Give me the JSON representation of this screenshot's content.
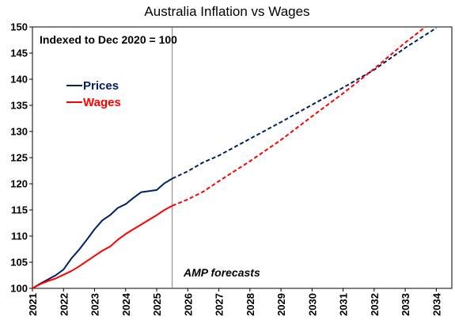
{
  "chart_data": {
    "type": "line",
    "title": "Australia Inflation vs Wages",
    "subtitle": "Indexed to Dec 2020 = 100",
    "annotation": "AMP forecasts",
    "forecast_start": 2025.5,
    "ylim": [
      100,
      150
    ],
    "xlim": [
      2021,
      2034.5
    ],
    "yticks": [
      100,
      105,
      110,
      115,
      120,
      125,
      130,
      135,
      140,
      145,
      150
    ],
    "xticks": [
      2021,
      2022,
      2023,
      2024,
      2025,
      2026,
      2027,
      2028,
      2029,
      2030,
      2031,
      2032,
      2033,
      2034
    ],
    "legend_position": "left",
    "series": [
      {
        "name": "Prices",
        "color": "#002060",
        "actual": [
          [
            2021.0,
            100.0
          ],
          [
            2021.25,
            100.9
          ],
          [
            2021.5,
            101.7
          ],
          [
            2021.75,
            102.5
          ],
          [
            2022.0,
            103.6
          ],
          [
            2022.25,
            105.7
          ],
          [
            2022.5,
            107.4
          ],
          [
            2022.75,
            109.3
          ],
          [
            2023.0,
            111.3
          ],
          [
            2023.25,
            113.0
          ],
          [
            2023.5,
            114.0
          ],
          [
            2023.75,
            115.4
          ],
          [
            2024.0,
            116.1
          ],
          [
            2024.25,
            117.3
          ],
          [
            2024.5,
            118.4
          ],
          [
            2024.75,
            118.6
          ],
          [
            2025.0,
            118.8
          ],
          [
            2025.25,
            120.1
          ],
          [
            2025.5,
            121.0
          ]
        ],
        "forecast": [
          [
            2025.5,
            121.0
          ],
          [
            2026.0,
            122.4
          ],
          [
            2026.5,
            124.1
          ],
          [
            2027.0,
            125.4
          ],
          [
            2028.0,
            128.6
          ],
          [
            2029.0,
            131.8
          ],
          [
            2030.0,
            135.1
          ],
          [
            2031.0,
            138.4
          ],
          [
            2032.0,
            141.8
          ],
          [
            2033.0,
            146.0
          ],
          [
            2034.0,
            149.8
          ]
        ]
      },
      {
        "name": "Wages",
        "color": "#ff0000",
        "actual": [
          [
            2021.0,
            100.0
          ],
          [
            2021.25,
            100.8
          ],
          [
            2021.5,
            101.4
          ],
          [
            2021.75,
            101.9
          ],
          [
            2022.0,
            102.6
          ],
          [
            2022.25,
            103.3
          ],
          [
            2022.5,
            104.2
          ],
          [
            2022.75,
            105.2
          ],
          [
            2023.0,
            106.2
          ],
          [
            2023.25,
            107.2
          ],
          [
            2023.5,
            108.0
          ],
          [
            2023.75,
            109.3
          ],
          [
            2024.0,
            110.4
          ],
          [
            2024.25,
            111.3
          ],
          [
            2024.5,
            112.2
          ],
          [
            2024.75,
            113.1
          ],
          [
            2025.0,
            114.0
          ],
          [
            2025.25,
            115.0
          ],
          [
            2025.5,
            115.8
          ]
        ],
        "forecast": [
          [
            2025.5,
            115.8
          ],
          [
            2026.0,
            117.0
          ],
          [
            2026.5,
            118.5
          ],
          [
            2027.0,
            120.5
          ],
          [
            2028.0,
            124.3
          ],
          [
            2029.0,
            128.4
          ],
          [
            2030.0,
            132.9
          ],
          [
            2031.0,
            137.3
          ],
          [
            2032.0,
            142.0
          ],
          [
            2033.0,
            147.0
          ],
          [
            2033.65,
            150.0
          ]
        ]
      }
    ]
  }
}
